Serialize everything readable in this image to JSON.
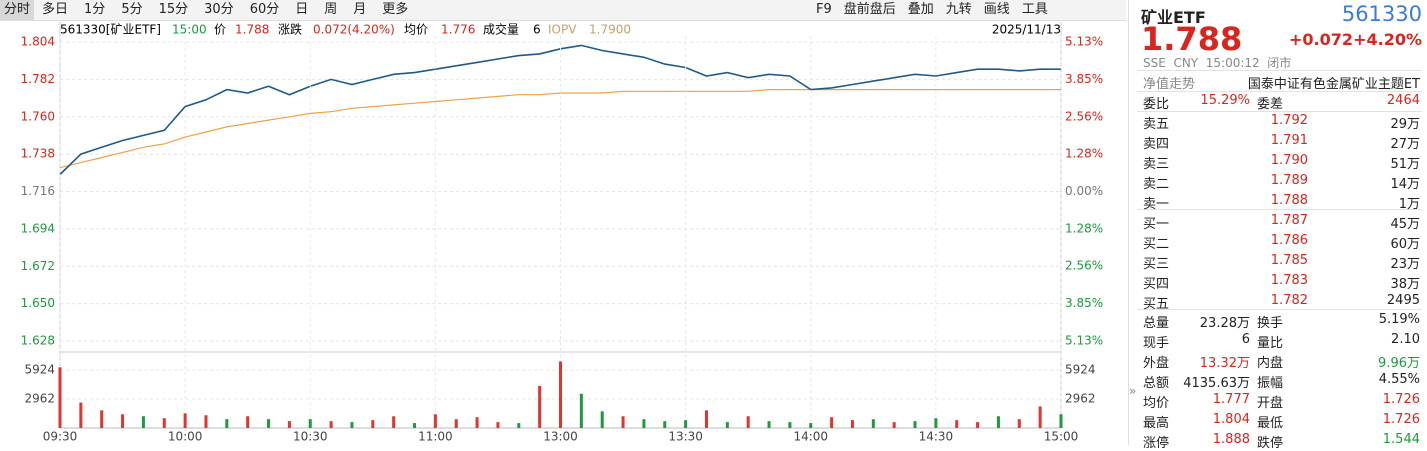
{
  "toolbar": {
    "tabs": [
      "分时",
      "多日",
      "1分",
      "5分",
      "15分",
      "30分",
      "60分",
      "日",
      "周",
      "月",
      "更多"
    ],
    "tools": [
      "F9",
      "盘前盘后",
      "叠加",
      "九转",
      "画线",
      "工具"
    ]
  },
  "chart_header": {
    "symbol": "561330[矿业ETF]",
    "time": "15:00",
    "price_label": "价",
    "price": "1.788",
    "change_label": "涨跌",
    "change": "0.072(4.20%)",
    "avg_label": "均价",
    "avg": "1.776",
    "volume_label": "成交量",
    "volume": "6",
    "iopv_label": "IOPV",
    "iopv": "1.7900",
    "date": "2025/11/13"
  },
  "chart_data": [
    {
      "type": "line",
      "series": [
        {
          "color": "#1f5b86",
          "values": [
            1.726,
            1.738,
            1.742,
            1.746,
            1.749,
            1.752,
            1.766,
            1.77,
            1.776,
            1.774,
            1.778,
            1.773,
            1.778,
            1.782,
            1.779,
            1.782,
            1.785,
            1.786,
            1.788,
            1.79,
            1.792,
            1.794,
            1.796,
            1.797,
            1.8,
            1.802,
            1.799,
            1.797,
            1.795,
            1.791,
            1.789,
            1.784,
            1.786,
            1.783,
            1.785,
            1.784,
            1.776,
            1.777,
            1.779,
            1.781,
            1.783,
            1.785,
            1.784,
            1.786,
            1.788,
            1.788,
            1.787,
            1.788,
            1.788
          ]
        },
        {
          "color": "#f0a04b",
          "values": [
            1.73,
            1.733,
            1.736,
            1.739,
            1.742,
            1.744,
            1.748,
            1.751,
            1.754,
            1.756,
            1.758,
            1.76,
            1.762,
            1.763,
            1.765,
            1.766,
            1.767,
            1.768,
            1.769,
            1.77,
            1.771,
            1.772,
            1.773,
            1.773,
            1.774,
            1.774,
            1.774,
            1.775,
            1.775,
            1.775,
            1.775,
            1.775,
            1.775,
            1.775,
            1.776,
            1.776,
            1.776,
            1.776,
            1.776,
            1.776,
            1.776,
            1.776,
            1.776,
            1.776,
            1.776,
            1.776,
            1.776,
            1.776,
            1.776
          ]
        }
      ],
      "ylim": [
        1.628,
        1.804
      ],
      "yticks": [
        1.804,
        1.782,
        {
          "value": 1.76,
          "label": "1.760"
        },
        1.738,
        1.716,
        1.694,
        1.672,
        {
          "value": 1.65,
          "label": "1.650"
        },
        1.628
      ],
      "y2lim": [
        -5.13,
        5.13
      ],
      "y2ticks": [
        {
          "value": 5.13,
          "label": "5.13%"
        },
        {
          "value": 3.85,
          "label": "3.85%"
        },
        {
          "value": 2.56,
          "label": "2.56%"
        },
        {
          "value": 1.28,
          "label": "1.28%"
        },
        {
          "value": 0,
          "label": "0.00%"
        },
        {
          "value": -1.28,
          "label": "1.28%"
        },
        {
          "value": -2.56,
          "label": "2.56%"
        },
        {
          "value": -3.85,
          "label": "3.85%"
        },
        {
          "value": -5.13,
          "label": "5.13%"
        }
      ],
      "grid": true
    },
    {
      "type": "bar",
      "categories": [
        "09:30",
        null,
        null,
        null,
        null,
        null,
        "10:00",
        null,
        null,
        null,
        null,
        null,
        "10:30",
        null,
        null,
        null,
        null,
        null,
        "11:00",
        null,
        null,
        null,
        null,
        null,
        "13:00",
        null,
        null,
        null,
        null,
        null,
        "13:30",
        null,
        null,
        null,
        null,
        null,
        "14:00",
        null,
        null,
        null,
        null,
        null,
        "14:30",
        null,
        null,
        null,
        null,
        null,
        "15:00"
      ],
      "values": [
        6200,
        2600,
        1800,
        1400,
        1200,
        1000,
        1500,
        1300,
        900,
        1200,
        900,
        700,
        900,
        700,
        600,
        800,
        1200,
        500,
        1400,
        900,
        1100,
        600,
        500,
        4300,
        6800,
        3500,
        1700,
        1200,
        900,
        700,
        800,
        1800,
        600,
        1200,
        700,
        600,
        500,
        1100,
        800,
        900,
        600,
        700,
        1000,
        800,
        600,
        1200,
        900,
        2200,
        1400
      ],
      "colors": [
        "#e0342c",
        "#e0342c",
        "#e0342c",
        "#e0342c",
        "#1c9a3d",
        "#e0342c",
        "#e0342c",
        "#e0342c",
        "#1c9a3d",
        "#e0342c",
        "#1c9a3d",
        "#e0342c",
        "#1c9a3d",
        "#e0342c",
        "#1c9a3d",
        "#e0342c",
        "#e0342c",
        "#1c9a3d",
        "#e0342c",
        "#e0342c",
        "#e0342c",
        "#e0342c",
        "#1c9a3d",
        "#e0342c",
        "#e0342c",
        "#1c9a3d",
        "#1c9a3d",
        "#e0342c",
        "#1c9a3d",
        "#1c9a3d",
        "#1c9a3d",
        "#e0342c",
        "#1c9a3d",
        "#e0342c",
        "#1c9a3d",
        "#1c9a3d",
        "#1c9a3d",
        "#e0342c",
        "#e0342c",
        "#1c9a3d",
        "#e0342c",
        "#1c9a3d",
        "#1c9a3d",
        "#e0342c",
        "#e0342c",
        "#1c9a3d",
        "#e0342c",
        "#e0342c",
        "#1c9a3d"
      ],
      "ylim": [
        0,
        7150
      ],
      "yticks": [
        2962,
        5924
      ],
      "grid": true
    }
  ],
  "quote": {
    "name": "矿业ETF",
    "code": "561330",
    "price": "1.788",
    "change": "+0.072",
    "change_pct": "+4.20%",
    "status": "SSE  CNY  15:00:12  闭市",
    "nav_label": "净值走势",
    "fund_name": "国泰中证有色金属矿业主题ET",
    "ratio_label": "委比",
    "ratio": "15.29%",
    "diff_label": "委差",
    "diff": "2464",
    "order_book": [
      {
        "label": "卖五",
        "price": "1.792",
        "volume": "29万"
      },
      {
        "label": "卖四",
        "price": "1.791",
        "volume": "27万"
      },
      {
        "label": "卖三",
        "price": "1.790",
        "volume": "51万"
      },
      {
        "label": "卖二",
        "price": "1.789",
        "volume": "14万"
      },
      {
        "label": "卖一",
        "price": "1.788",
        "volume": "1万"
      },
      {
        "label": "买一",
        "price": "1.787",
        "volume": "45万"
      },
      {
        "label": "买二",
        "price": "1.786",
        "volume": "60万"
      },
      {
        "label": "买三",
        "price": "1.785",
        "volume": "23万"
      },
      {
        "label": "买四",
        "price": "1.783",
        "volume": "38万"
      },
      {
        "label": "买五",
        "price": "1.782",
        "volume": "2495"
      }
    ],
    "stats": [
      {
        "label1": "总量",
        "value1": "23.28万",
        "label2": "换手",
        "value2": "5.19%"
      },
      {
        "label1": "现手",
        "value1": "6",
        "label2": "量比",
        "value2": "2.10"
      },
      {
        "label1": "外盘",
        "value1": "13.32万",
        "label2": "内盘",
        "value2": "9.96万"
      },
      {
        "label1": "总额",
        "value1": "4135.63万",
        "label2": "振幅",
        "value2": "4.55%"
      },
      {
        "label1": "均价",
        "value1": "1.777",
        "label2": "开盘",
        "value2": "1.726"
      },
      {
        "label1": "最高",
        "value1": "1.804",
        "label2": "最低",
        "value2": "1.726"
      },
      {
        "label1": "涨停",
        "value1": "1.888",
        "label2": "跌停",
        "value2": "1.544"
      }
    ]
  }
}
